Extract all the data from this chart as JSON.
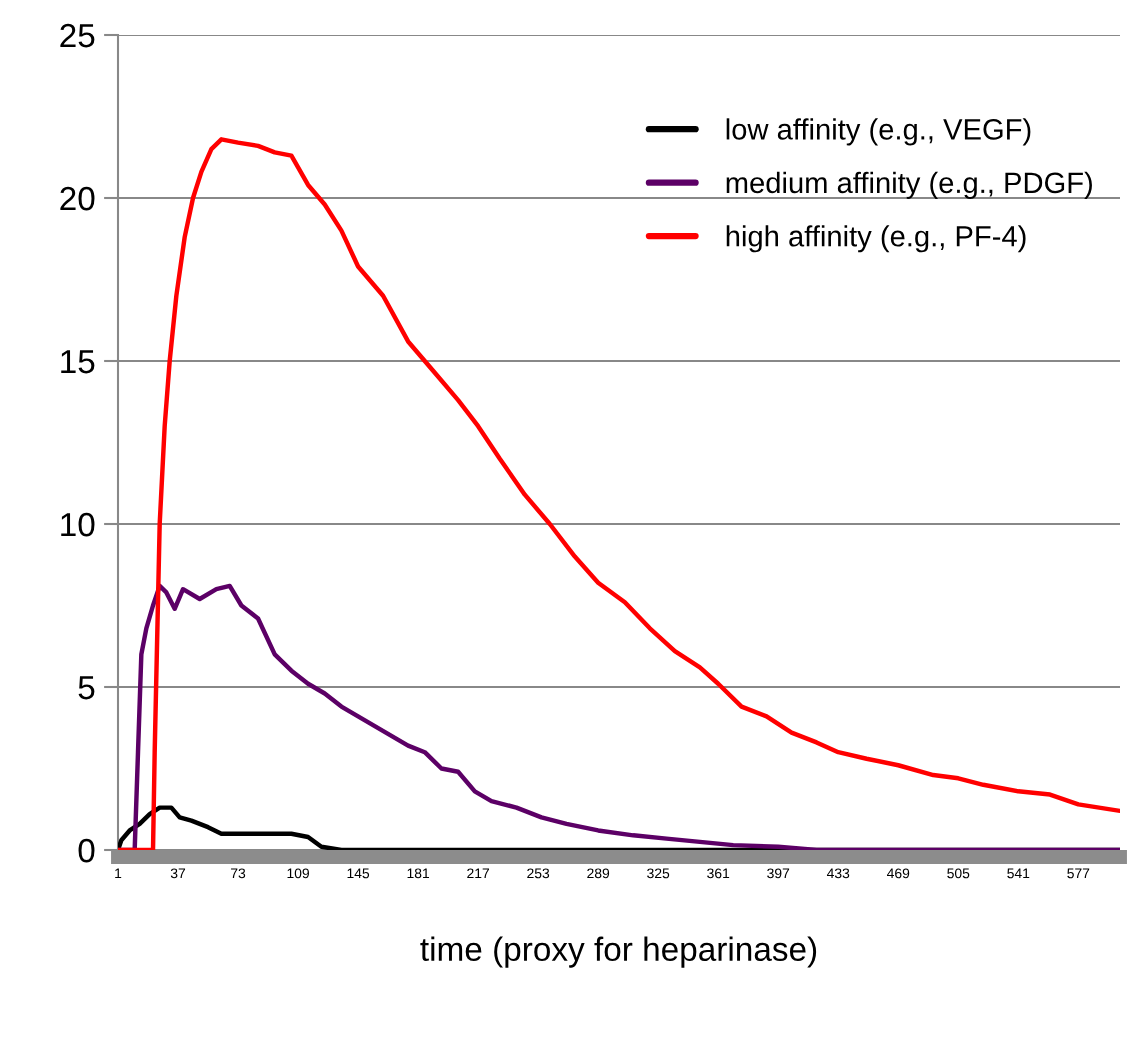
{
  "chart_data": {
    "type": "line",
    "xlabel": "time (proxy for heparinase)",
    "xlim": [
      1,
      602
    ],
    "xticks": [
      1,
      37,
      73,
      109,
      145,
      181,
      217,
      253,
      289,
      325,
      361,
      397,
      433,
      469,
      505,
      541,
      577
    ],
    "ylim": [
      0,
      25
    ],
    "yticks": [
      0,
      5,
      10,
      15,
      20,
      25
    ],
    "grid": "y",
    "legend": "top right",
    "line_style": "solid",
    "marker": "none",
    "series": [
      {
        "name": "low affinity (e.g., VEGF)",
        "color": "#000000",
        "x": [
          1,
          3,
          8,
          14,
          20,
          26,
          33,
          38,
          45,
          55,
          63,
          75,
          90,
          105,
          115,
          123,
          135,
          602
        ],
        "values": [
          0,
          0.3,
          0.6,
          0.8,
          1.1,
          1.3,
          1.3,
          1.0,
          0.9,
          0.7,
          0.5,
          0.5,
          0.5,
          0.5,
          0.4,
          0.1,
          0,
          0
        ]
      },
      {
        "name": "medium affinity (e.g., PDGF)",
        "color": "#5c0066",
        "x": [
          1,
          11,
          13,
          15,
          18,
          22,
          26,
          30,
          35,
          40,
          50,
          60,
          68,
          75,
          85,
          95,
          105,
          115,
          125,
          135,
          145,
          155,
          165,
          175,
          185,
          195,
          205,
          215,
          225,
          240,
          255,
          270,
          289,
          310,
          330,
          350,
          370,
          397,
          420,
          602
        ],
        "values": [
          0,
          0,
          3,
          6,
          6.8,
          7.5,
          8.1,
          7.9,
          7.4,
          8,
          7.7,
          8,
          8.1,
          7.5,
          7.1,
          6,
          5.5,
          5.1,
          4.8,
          4.4,
          4.1,
          3.8,
          3.5,
          3.2,
          3.0,
          2.5,
          2.4,
          1.8,
          1.5,
          1.3,
          1.0,
          0.8,
          0.6,
          0.45,
          0.35,
          0.25,
          0.15,
          0.1,
          0,
          0
        ]
      },
      {
        "name": "high affinity (e.g., PF-4)",
        "color": "#ff0000",
        "x": [
          1,
          22,
          23,
          26,
          29,
          32,
          36,
          41,
          46,
          51,
          57,
          63,
          73,
          85,
          95,
          105,
          115,
          125,
          135,
          145,
          160,
          175,
          190,
          205,
          217,
          230,
          245,
          260,
          275,
          289,
          305,
          320,
          335,
          350,
          361,
          375,
          390,
          405,
          420,
          433,
          450,
          469,
          490,
          505,
          520,
          541,
          560,
          577,
          602
        ],
        "values": [
          0,
          0,
          3,
          10,
          13,
          15,
          17,
          18.8,
          20,
          20.8,
          21.5,
          21.8,
          21.7,
          21.6,
          21.4,
          21.3,
          20.4,
          19.8,
          19,
          17.9,
          17,
          15.6,
          14.7,
          13.8,
          13,
          12,
          10.9,
          10,
          9,
          8.2,
          7.6,
          6.8,
          6.1,
          5.6,
          5.1,
          4.4,
          4.1,
          3.6,
          3.3,
          3.0,
          2.8,
          2.6,
          2.3,
          2.2,
          2.0,
          1.8,
          1.7,
          1.4,
          1.2
        ]
      }
    ]
  }
}
